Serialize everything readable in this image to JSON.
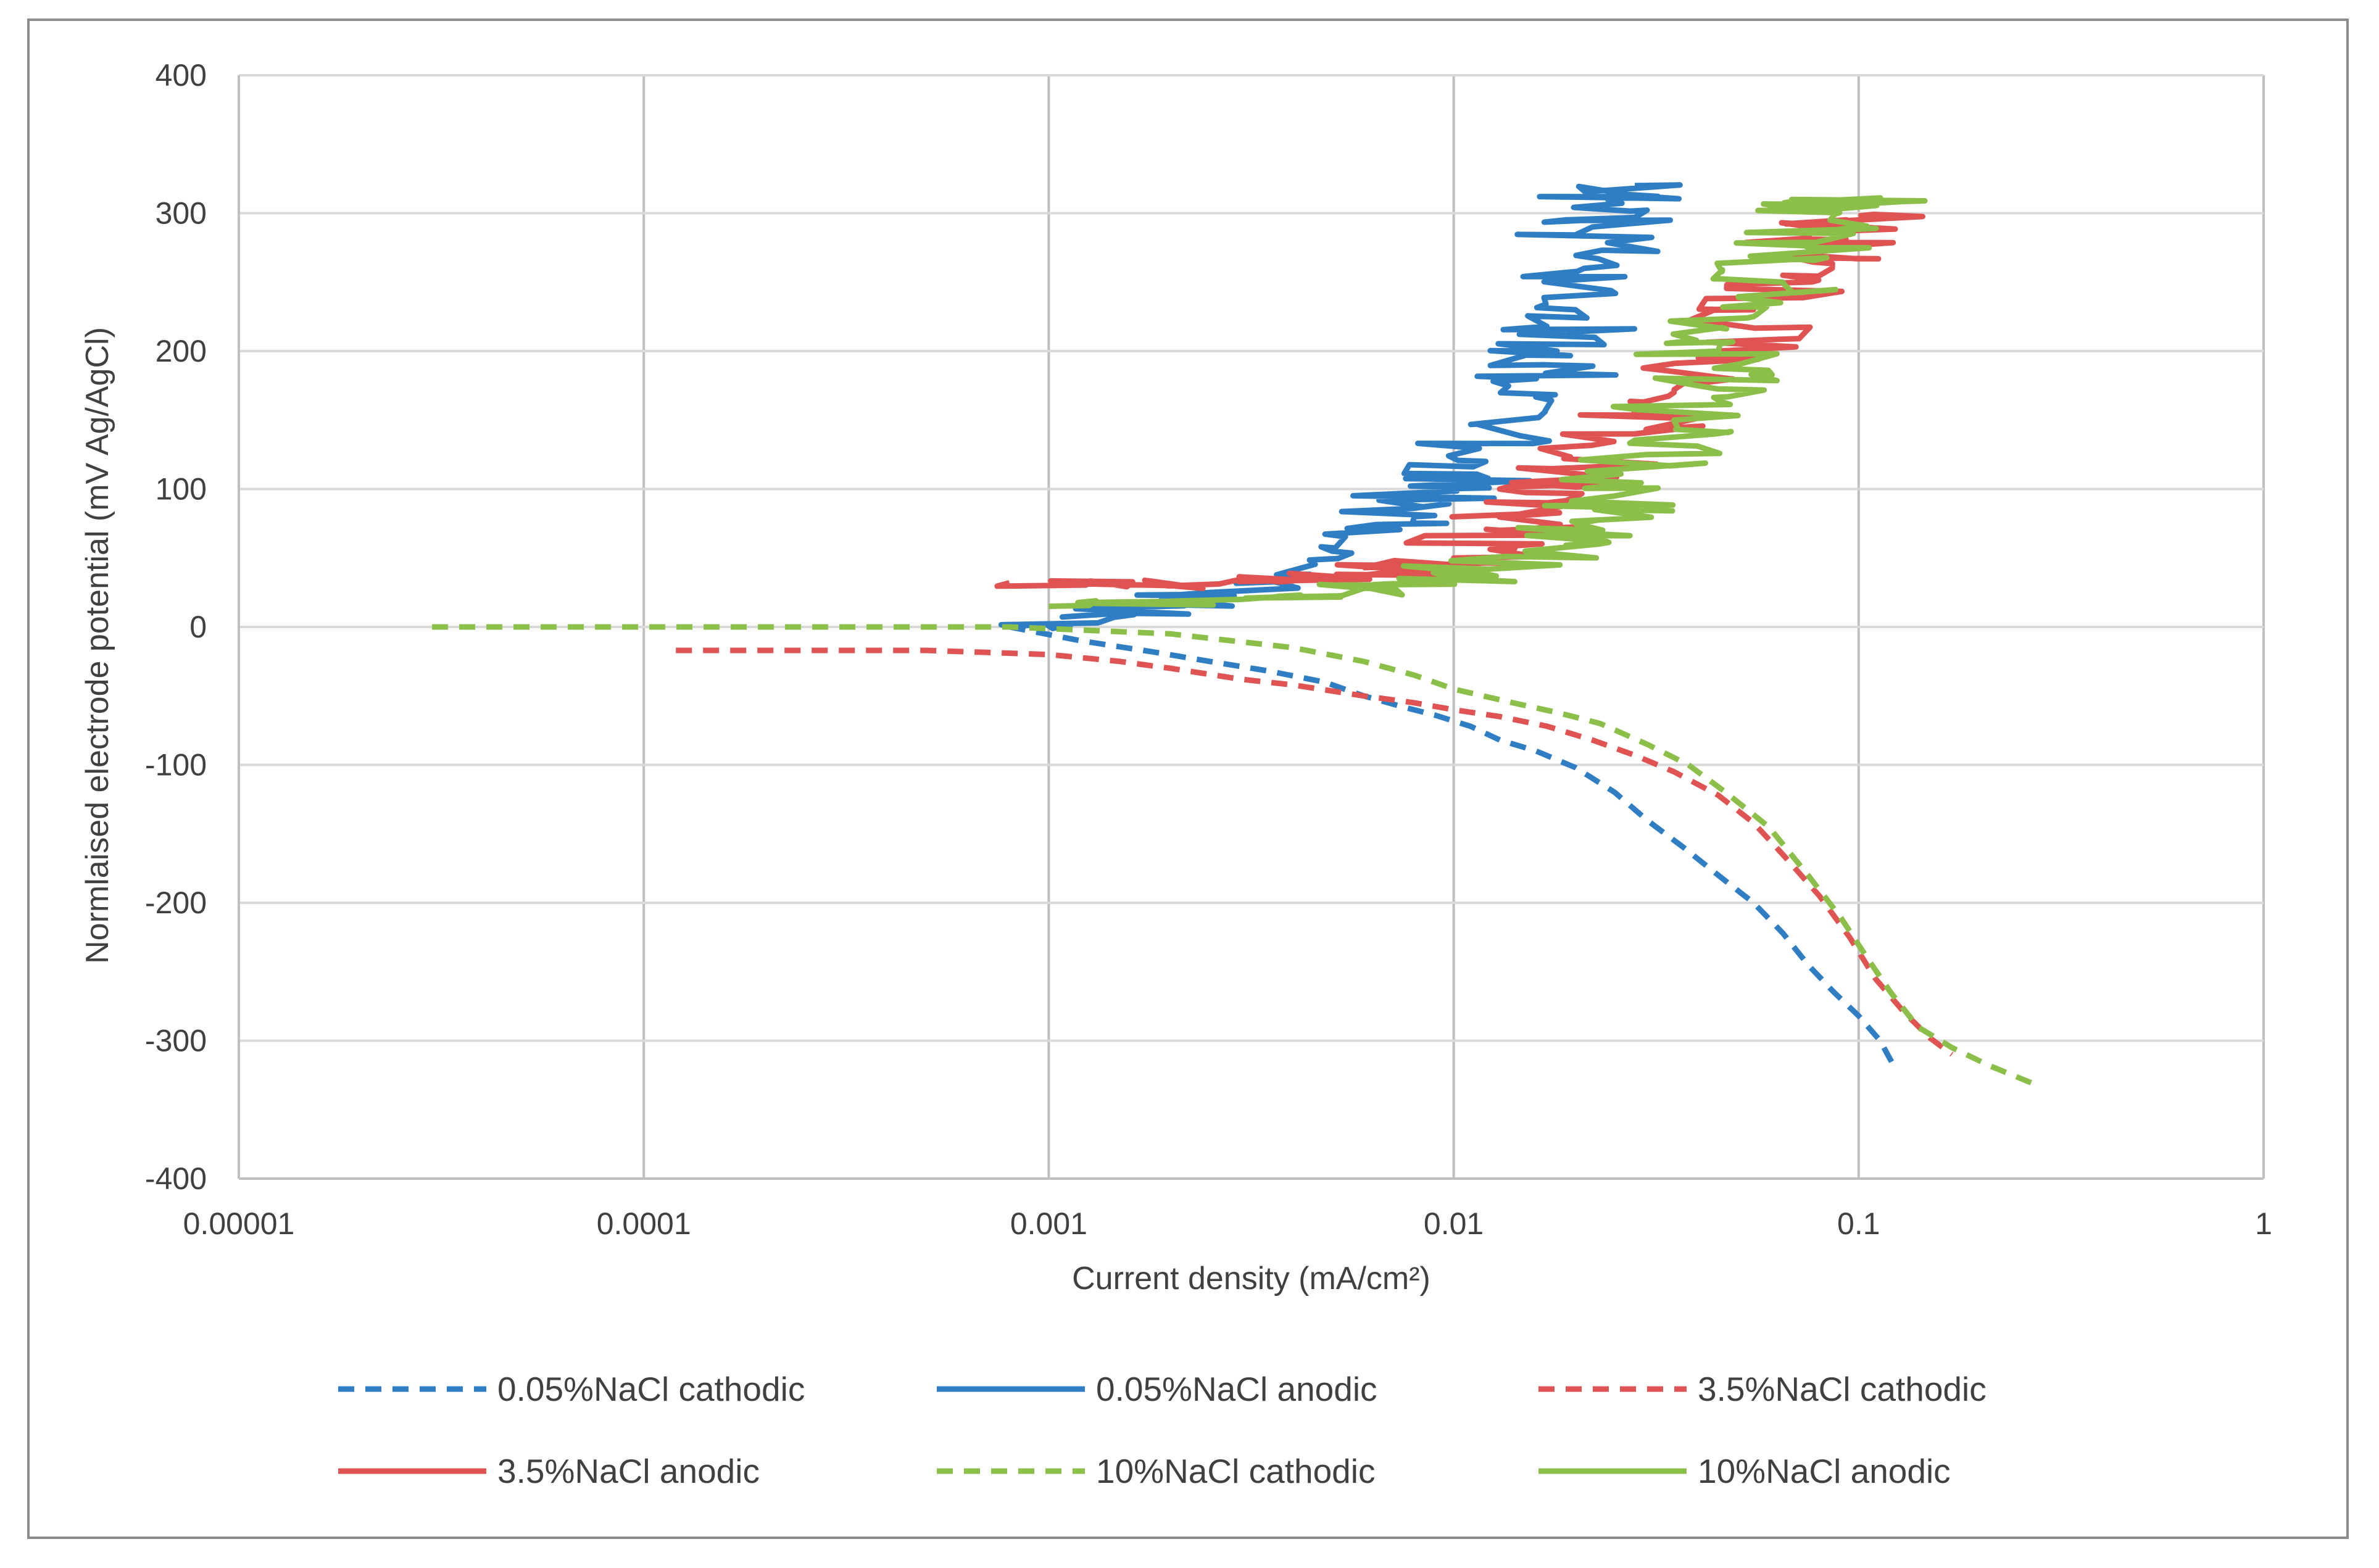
{
  "chart_data": {
    "type": "line",
    "title": "",
    "xlabel": "Current density (mA/cm²)",
    "ylabel": "Normlaised  electrode potential  (mV Ag/AgCl)",
    "x_scale": "log",
    "xlim": [
      1e-05,
      1
    ],
    "ylim": [
      -400,
      400
    ],
    "x_tick_labels": [
      "0.00001",
      "0.0001",
      "0.001",
      "0.01",
      "0.1",
      "1"
    ],
    "x_tick_values": [
      1e-05,
      0.0001,
      0.001,
      0.01,
      0.1,
      1
    ],
    "y_tick_labels": [
      "400",
      "300",
      "200",
      "100",
      "0",
      "-100",
      "-200",
      "-300",
      "-400"
    ],
    "y_tick_values": [
      400,
      300,
      200,
      100,
      0,
      -100,
      -200,
      -300,
      -400
    ],
    "grid": true,
    "legend_position": "bottom",
    "series": [
      {
        "name": "0.05%NaCl cathodic",
        "color": "#2f7ec4",
        "dash": "dashed",
        "points": [
          [
            0.0008,
            0
          ],
          [
            0.0012,
            -10
          ],
          [
            0.0018,
            -18
          ],
          [
            0.0025,
            -25
          ],
          [
            0.0035,
            -32
          ],
          [
            0.0048,
            -40
          ],
          [
            0.006,
            -50
          ],
          [
            0.0075,
            -58
          ],
          [
            0.009,
            -64
          ],
          [
            0.011,
            -72
          ],
          [
            0.013,
            -82
          ],
          [
            0.016,
            -90
          ],
          [
            0.02,
            -102
          ],
          [
            0.025,
            -120
          ],
          [
            0.03,
            -140
          ],
          [
            0.037,
            -160
          ],
          [
            0.045,
            -180
          ],
          [
            0.055,
            -200
          ],
          [
            0.065,
            -222
          ],
          [
            0.075,
            -245
          ],
          [
            0.087,
            -265
          ],
          [
            0.1,
            -282
          ],
          [
            0.113,
            -300
          ],
          [
            0.123,
            -320
          ]
        ]
      },
      {
        "name": "0.05%NaCl anodic",
        "color": "#2f7ec4",
        "dash": "solid",
        "points": [
          [
            0.0008,
            0
          ],
          [
            0.0015,
            10
          ],
          [
            0.0025,
            25
          ],
          [
            0.005,
            55
          ],
          [
            0.008,
            80
          ],
          [
            0.009,
            100
          ],
          [
            0.012,
            120
          ],
          [
            0.014,
            150
          ],
          [
            0.016,
            180
          ],
          [
            0.018,
            200
          ],
          [
            0.02,
            230
          ],
          [
            0.021,
            260
          ],
          [
            0.022,
            290
          ],
          [
            0.024,
            310
          ],
          [
            0.028,
            320
          ]
        ]
      },
      {
        "name": "3.5%NaCl cathodic",
        "color": "#e05353",
        "dash": "dashed",
        "points": [
          [
            0.00012,
            -17
          ],
          [
            0.0005,
            -17
          ],
          [
            0.001,
            -20
          ],
          [
            0.0015,
            -25
          ],
          [
            0.002,
            -30
          ],
          [
            0.003,
            -38
          ],
          [
            0.004,
            -42
          ],
          [
            0.006,
            -50
          ],
          [
            0.008,
            -55
          ],
          [
            0.01,
            -60
          ],
          [
            0.013,
            -65
          ],
          [
            0.017,
            -72
          ],
          [
            0.022,
            -82
          ],
          [
            0.028,
            -93
          ],
          [
            0.035,
            -105
          ],
          [
            0.045,
            -122
          ],
          [
            0.055,
            -142
          ],
          [
            0.065,
            -165
          ],
          [
            0.08,
            -195
          ],
          [
            0.095,
            -225
          ],
          [
            0.11,
            -255
          ],
          [
            0.13,
            -280
          ],
          [
            0.15,
            -298
          ],
          [
            0.17,
            -310
          ]
        ]
      },
      {
        "name": "3.5%NaCl anodic",
        "color": "#e05353",
        "dash": "solid",
        "points": [
          [
            0.0008,
            32
          ],
          [
            0.002,
            30
          ],
          [
            0.004,
            35
          ],
          [
            0.007,
            40
          ],
          [
            0.01,
            50
          ],
          [
            0.013,
            70
          ],
          [
            0.017,
            90
          ],
          [
            0.022,
            110
          ],
          [
            0.028,
            140
          ],
          [
            0.035,
            170
          ],
          [
            0.045,
            200
          ],
          [
            0.055,
            230
          ],
          [
            0.065,
            255
          ],
          [
            0.08,
            275
          ],
          [
            0.095,
            290
          ],
          [
            0.1,
            298
          ]
        ]
      },
      {
        "name": "10%NaCl cathodic",
        "color": "#8cbf4a",
        "dash": "dashed",
        "points": [
          [
            3e-05,
            0
          ],
          [
            0.0002,
            0
          ],
          [
            0.0008,
            0
          ],
          [
            0.002,
            -5
          ],
          [
            0.004,
            -15
          ],
          [
            0.006,
            -25
          ],
          [
            0.008,
            -35
          ],
          [
            0.01,
            -45
          ],
          [
            0.014,
            -55
          ],
          [
            0.018,
            -62
          ],
          [
            0.023,
            -70
          ],
          [
            0.03,
            -85
          ],
          [
            0.038,
            -100
          ],
          [
            0.047,
            -120
          ],
          [
            0.06,
            -145
          ],
          [
            0.075,
            -180
          ],
          [
            0.09,
            -210
          ],
          [
            0.105,
            -240
          ],
          [
            0.12,
            -265
          ],
          [
            0.14,
            -290
          ],
          [
            0.17,
            -305
          ],
          [
            0.21,
            -318
          ],
          [
            0.28,
            -333
          ]
        ]
      },
      {
        "name": "10%NaCl anodic",
        "color": "#8cbf4a",
        "dash": "solid",
        "points": [
          [
            0.001,
            15
          ],
          [
            0.003,
            20
          ],
          [
            0.006,
            28
          ],
          [
            0.01,
            35
          ],
          [
            0.015,
            55
          ],
          [
            0.02,
            75
          ],
          [
            0.025,
            95
          ],
          [
            0.03,
            125
          ],
          [
            0.035,
            150
          ],
          [
            0.04,
            175
          ],
          [
            0.045,
            200
          ],
          [
            0.055,
            225
          ],
          [
            0.065,
            250
          ],
          [
            0.075,
            275
          ],
          [
            0.085,
            295
          ],
          [
            0.095,
            310
          ],
          [
            0.105,
            305
          ]
        ]
      }
    ]
  }
}
